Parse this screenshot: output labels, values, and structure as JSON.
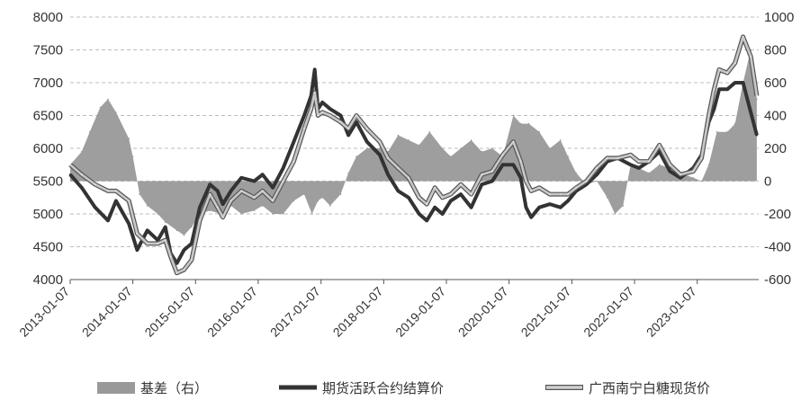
{
  "chart_data": {
    "type": "line",
    "y_left": {
      "range": [
        4000,
        8000
      ],
      "ticks": [
        "8000",
        "7500",
        "7000",
        "6500",
        "6000",
        "5500",
        "5000",
        "4500",
        "4000"
      ]
    },
    "y_right": {
      "range": [
        -600,
        1000
      ],
      "ticks": [
        "1000",
        "800",
        "600",
        "400",
        "200",
        "0",
        "-200",
        "-400",
        "-600"
      ]
    },
    "x_ticks": [
      "2013-01-07",
      "2014-01-07",
      "2015-01-07",
      "2016-01-07",
      "2017-01-07",
      "2018-01-07",
      "2019-01-07",
      "2020-01-07",
      "2021-01-07",
      "2022-01-07",
      "2023-01-07"
    ],
    "grid": "horizontal-dashed",
    "legend_position": "bottom",
    "legend": [
      "基差（右）",
      "期货活跃合约结算价",
      "广西南宁白糖现货价"
    ],
    "series": [
      {
        "name": "期货活跃合约结算价",
        "axis": "left",
        "color": "#333333",
        "points": [
          [
            "2013-01-07",
            5600
          ],
          [
            "2013-03-15",
            5400
          ],
          [
            "2013-06-01",
            5100
          ],
          [
            "2013-08-15",
            4900
          ],
          [
            "2013-10-01",
            5200
          ],
          [
            "2013-12-15",
            4850
          ],
          [
            "2014-02-01",
            4450
          ],
          [
            "2014-04-01",
            4750
          ],
          [
            "2014-06-01",
            4600
          ],
          [
            "2014-07-15",
            4800
          ],
          [
            "2014-08-15",
            4400
          ],
          [
            "2014-09-20",
            4250
          ],
          [
            "2014-11-01",
            4450
          ],
          [
            "2014-12-15",
            4550
          ],
          [
            "2015-02-01",
            5100
          ],
          [
            "2015-04-01",
            5450
          ],
          [
            "2015-05-15",
            5350
          ],
          [
            "2015-06-15",
            5150
          ],
          [
            "2015-08-01",
            5350
          ],
          [
            "2015-10-01",
            5550
          ],
          [
            "2015-12-15",
            5500
          ],
          [
            "2016-02-01",
            5600
          ],
          [
            "2016-04-01",
            5400
          ],
          [
            "2016-06-01",
            5700
          ],
          [
            "2016-08-01",
            6100
          ],
          [
            "2016-10-01",
            6500
          ],
          [
            "2016-11-10",
            6800
          ],
          [
            "2016-12-01",
            7200
          ],
          [
            "2016-12-20",
            6600
          ],
          [
            "2017-01-15",
            6700
          ],
          [
            "2017-03-01",
            6600
          ],
          [
            "2017-05-01",
            6500
          ],
          [
            "2017-06-15",
            6200
          ],
          [
            "2017-08-01",
            6400
          ],
          [
            "2017-10-01",
            6100
          ],
          [
            "2017-12-15",
            5900
          ],
          [
            "2018-02-01",
            5600
          ],
          [
            "2018-04-01",
            5350
          ],
          [
            "2018-06-01",
            5250
          ],
          [
            "2018-08-01",
            5000
          ],
          [
            "2018-09-15",
            4900
          ],
          [
            "2018-11-01",
            5100
          ],
          [
            "2018-12-15",
            5000
          ],
          [
            "2019-02-01",
            5200
          ],
          [
            "2019-04-01",
            5300
          ],
          [
            "2019-06-01",
            5100
          ],
          [
            "2019-08-01",
            5450
          ],
          [
            "2019-10-01",
            5500
          ],
          [
            "2019-12-01",
            5750
          ],
          [
            "2020-02-01",
            5750
          ],
          [
            "2020-03-15",
            5550
          ],
          [
            "2020-04-15",
            5100
          ],
          [
            "2020-05-15",
            4950
          ],
          [
            "2020-07-01",
            5100
          ],
          [
            "2020-09-01",
            5150
          ],
          [
            "2020-11-01",
            5100
          ],
          [
            "2020-12-15",
            5200
          ],
          [
            "2021-02-01",
            5350
          ],
          [
            "2021-04-01",
            5450
          ],
          [
            "2021-06-01",
            5600
          ],
          [
            "2021-08-01",
            5800
          ],
          [
            "2021-10-01",
            5850
          ],
          [
            "2021-12-15",
            5750
          ],
          [
            "2022-02-01",
            5700
          ],
          [
            "2022-04-01",
            5800
          ],
          [
            "2022-06-01",
            5950
          ],
          [
            "2022-08-01",
            5650
          ],
          [
            "2022-10-01",
            5550
          ],
          [
            "2022-12-15",
            5700
          ],
          [
            "2023-02-01",
            5900
          ],
          [
            "2023-03-15",
            6400
          ],
          [
            "2023-04-15",
            6600
          ],
          [
            "2023-05-15",
            6900
          ],
          [
            "2023-07-01",
            6900
          ],
          [
            "2023-08-15",
            7000
          ],
          [
            "2023-10-01",
            7000
          ],
          [
            "2023-11-15",
            6550
          ],
          [
            "2023-12-20",
            6200
          ]
        ]
      },
      {
        "name": "广西南宁白糖现货价",
        "axis": "left",
        "color": "#c8c8c8",
        "points": [
          [
            "2013-01-07",
            5750
          ],
          [
            "2013-03-15",
            5600
          ],
          [
            "2013-06-01",
            5450
          ],
          [
            "2013-08-15",
            5350
          ],
          [
            "2013-10-01",
            5350
          ],
          [
            "2013-12-15",
            5200
          ],
          [
            "2014-02-01",
            4700
          ],
          [
            "2014-04-01",
            4550
          ],
          [
            "2014-06-01",
            4550
          ],
          [
            "2014-07-15",
            4600
          ],
          [
            "2014-08-15",
            4350
          ],
          [
            "2014-09-20",
            4100
          ],
          [
            "2014-11-01",
            4150
          ],
          [
            "2014-12-15",
            4300
          ],
          [
            "2015-02-01",
            4900
          ],
          [
            "2015-04-01",
            5300
          ],
          [
            "2015-05-15",
            5100
          ],
          [
            "2015-06-15",
            4950
          ],
          [
            "2015-08-01",
            5200
          ],
          [
            "2015-10-01",
            5350
          ],
          [
            "2015-12-15",
            5250
          ],
          [
            "2016-02-01",
            5350
          ],
          [
            "2016-04-01",
            5200
          ],
          [
            "2016-06-01",
            5500
          ],
          [
            "2016-08-01",
            5800
          ],
          [
            "2016-10-01",
            6300
          ],
          [
            "2016-11-10",
            6600
          ],
          [
            "2016-12-01",
            6850
          ],
          [
            "2016-12-20",
            6500
          ],
          [
            "2017-01-15",
            6550
          ],
          [
            "2017-03-01",
            6500
          ],
          [
            "2017-05-01",
            6400
          ],
          [
            "2017-06-15",
            6300
          ],
          [
            "2017-08-01",
            6500
          ],
          [
            "2017-10-01",
            6300
          ],
          [
            "2017-12-15",
            6100
          ],
          [
            "2018-02-01",
            5850
          ],
          [
            "2018-04-01",
            5700
          ],
          [
            "2018-06-01",
            5550
          ],
          [
            "2018-08-01",
            5250
          ],
          [
            "2018-09-15",
            5150
          ],
          [
            "2018-11-01",
            5400
          ],
          [
            "2018-12-15",
            5250
          ],
          [
            "2019-02-01",
            5300
          ],
          [
            "2019-04-01",
            5450
          ],
          [
            "2019-06-01",
            5300
          ],
          [
            "2019-08-01",
            5600
          ],
          [
            "2019-10-01",
            5650
          ],
          [
            "2019-12-01",
            5900
          ],
          [
            "2020-02-01",
            6100
          ],
          [
            "2020-03-15",
            5800
          ],
          [
            "2020-04-15",
            5500
          ],
          [
            "2020-05-15",
            5350
          ],
          [
            "2020-07-01",
            5400
          ],
          [
            "2020-09-01",
            5300
          ],
          [
            "2020-11-01",
            5300
          ],
          [
            "2020-12-15",
            5300
          ],
          [
            "2021-02-01",
            5400
          ],
          [
            "2021-04-01",
            5500
          ],
          [
            "2021-06-01",
            5700
          ],
          [
            "2021-08-01",
            5850
          ],
          [
            "2021-10-01",
            5850
          ],
          [
            "2021-12-15",
            5900
          ],
          [
            "2022-02-01",
            5800
          ],
          [
            "2022-04-01",
            5800
          ],
          [
            "2022-06-01",
            6050
          ],
          [
            "2022-08-01",
            5750
          ],
          [
            "2022-10-01",
            5600
          ],
          [
            "2022-12-15",
            5650
          ],
          [
            "2023-02-01",
            5850
          ],
          [
            "2023-03-15",
            6500
          ],
          [
            "2023-04-15",
            6900
          ],
          [
            "2023-05-15",
            7200
          ],
          [
            "2023-07-01",
            7150
          ],
          [
            "2023-08-15",
            7300
          ],
          [
            "2023-10-01",
            7700
          ],
          [
            "2023-11-15",
            7400
          ],
          [
            "2023-12-20",
            6800
          ]
        ]
      },
      {
        "name": "基差（右）",
        "type": "area",
        "axis": "right",
        "color": "#999999",
        "points": [
          [
            "2013-01-07",
            100
          ],
          [
            "2013-03-15",
            180
          ],
          [
            "2013-05-01",
            300
          ],
          [
            "2013-07-01",
            450
          ],
          [
            "2013-08-15",
            500
          ],
          [
            "2013-10-01",
            420
          ],
          [
            "2013-12-15",
            260
          ],
          [
            "2014-01-07",
            150
          ],
          [
            "2014-02-15",
            -80
          ],
          [
            "2014-04-01",
            -150
          ],
          [
            "2014-06-01",
            -200
          ],
          [
            "2014-07-15",
            -250
          ],
          [
            "2014-09-20",
            -300
          ],
          [
            "2014-11-01",
            -330
          ],
          [
            "2014-12-15",
            -280
          ],
          [
            "2015-02-01",
            -200
          ],
          [
            "2015-04-01",
            -180
          ],
          [
            "2015-06-01",
            -200
          ],
          [
            "2015-08-01",
            -150
          ],
          [
            "2015-10-01",
            -200
          ],
          [
            "2015-12-15",
            -180
          ],
          [
            "2016-02-01",
            -150
          ],
          [
            "2016-04-01",
            -200
          ],
          [
            "2016-06-01",
            -200
          ],
          [
            "2016-08-01",
            -120
          ],
          [
            "2016-10-01",
            -80
          ],
          [
            "2016-11-15",
            -200
          ],
          [
            "2016-12-20",
            -120
          ],
          [
            "2017-01-15",
            -100
          ],
          [
            "2017-03-01",
            -150
          ],
          [
            "2017-05-01",
            -80
          ],
          [
            "2017-06-15",
            50
          ],
          [
            "2017-08-01",
            150
          ],
          [
            "2017-10-01",
            200
          ],
          [
            "2017-12-15",
            200
          ],
          [
            "2018-02-01",
            180
          ],
          [
            "2018-04-01",
            280
          ],
          [
            "2018-06-01",
            250
          ],
          [
            "2018-08-01",
            220
          ],
          [
            "2018-10-01",
            300
          ],
          [
            "2018-12-15",
            200
          ],
          [
            "2019-02-01",
            150
          ],
          [
            "2019-04-01",
            200
          ],
          [
            "2019-06-01",
            250
          ],
          [
            "2019-08-01",
            180
          ],
          [
            "2019-10-01",
            200
          ],
          [
            "2019-12-01",
            150
          ],
          [
            "2020-02-01",
            400
          ],
          [
            "2020-03-15",
            350
          ],
          [
            "2020-05-01",
            350
          ],
          [
            "2020-07-01",
            300
          ],
          [
            "2020-09-01",
            200
          ],
          [
            "2020-11-01",
            250
          ],
          [
            "2020-12-15",
            150
          ],
          [
            "2021-02-01",
            50
          ],
          [
            "2021-04-01",
            -20
          ],
          [
            "2021-06-01",
            0
          ],
          [
            "2021-08-01",
            -100
          ],
          [
            "2021-09-15",
            -200
          ],
          [
            "2021-11-01",
            -150
          ],
          [
            "2021-12-15",
            100
          ],
          [
            "2022-02-01",
            80
          ],
          [
            "2022-04-01",
            50
          ],
          [
            "2022-06-01",
            100
          ],
          [
            "2022-08-01",
            80
          ],
          [
            "2022-10-01",
            50
          ],
          [
            "2022-12-15",
            20
          ],
          [
            "2023-02-01",
            0
          ],
          [
            "2023-03-15",
            100
          ],
          [
            "2023-05-01",
            300
          ],
          [
            "2023-07-01",
            300
          ],
          [
            "2023-08-15",
            350
          ],
          [
            "2023-10-01",
            600
          ],
          [
            "2023-11-15",
            800
          ],
          [
            "2023-12-20",
            500
          ]
        ]
      }
    ]
  }
}
